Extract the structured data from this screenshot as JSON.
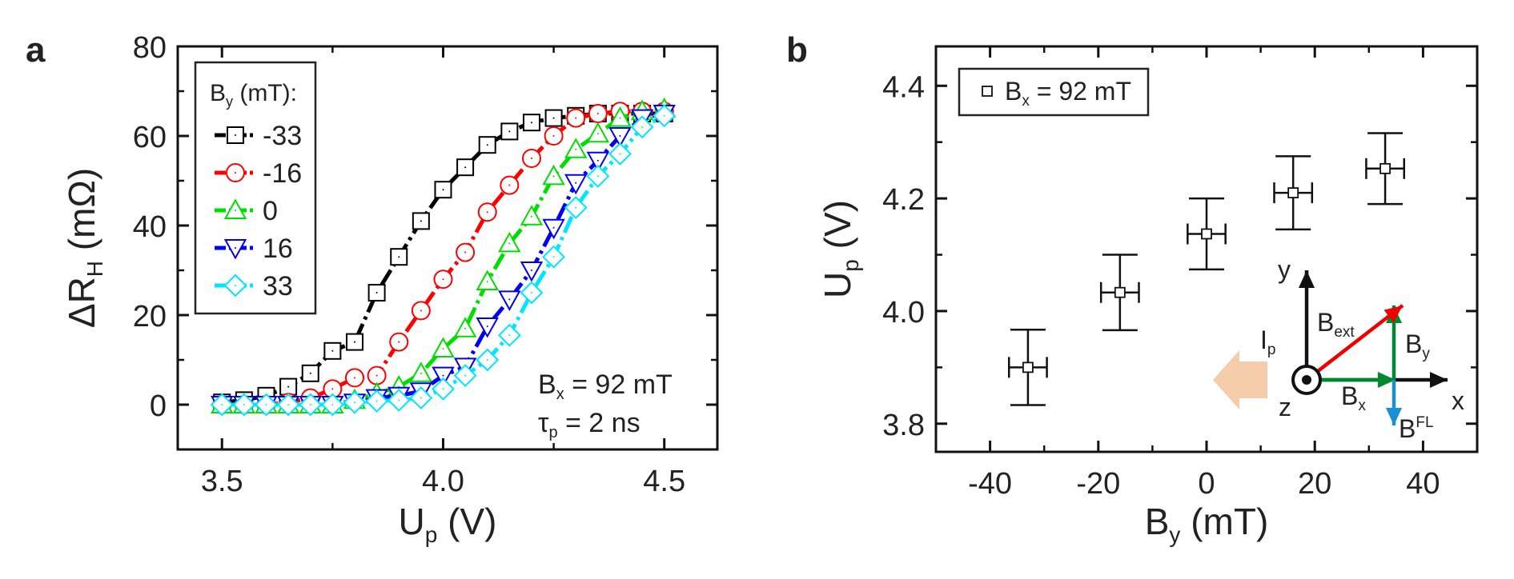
{
  "panel_labels": {
    "a": "a",
    "b": "b"
  },
  "chart_data": [
    {
      "type": "line",
      "panel": "a",
      "xlabel": {
        "main": "U",
        "sub": "p",
        "rest": " (V)"
      },
      "ylabel": {
        "main": "ΔR",
        "sub": "H",
        "rest": " (mΩ)"
      },
      "xlim": [
        3.4,
        4.62
      ],
      "ylim": [
        -10,
        80
      ],
      "xticks": [
        3.5,
        4.0,
        4.5
      ],
      "xtick_labels": [
        "3.5",
        "4.0",
        "4.5"
      ],
      "yticks": [
        0,
        20,
        40,
        60,
        80
      ],
      "ytick_labels": [
        "0",
        "20",
        "40",
        "60",
        "80"
      ],
      "legend_title": {
        "main": "B",
        "sub": "y",
        "rest": " (mT):"
      },
      "legend_position": "top-left",
      "annotation": {
        "line1": {
          "main": "B",
          "sub": "x",
          "rest": " = 92 mT"
        },
        "line2": {
          "main": "τ",
          "sub": "p",
          "rest": " = 2 ns"
        }
      },
      "x": [
        3.5,
        3.55,
        3.6,
        3.65,
        3.7,
        3.75,
        3.8,
        3.85,
        3.9,
        3.95,
        4.0,
        4.05,
        4.1,
        4.15,
        4.2,
        4.25,
        4.3,
        4.35,
        4.4,
        4.45,
        4.5
      ],
      "series": [
        {
          "name": "-33",
          "color": "#000000",
          "marker": "square",
          "values": [
            0.5,
            1,
            2,
            4,
            7,
            12,
            14,
            25,
            33,
            41,
            48,
            53,
            58,
            61,
            63,
            64,
            64.5,
            65,
            65,
            65,
            65
          ]
        },
        {
          "name": "-16",
          "color": "#ff0000",
          "marker": "circle",
          "values": [
            0,
            0,
            0,
            0.5,
            1.5,
            3.5,
            6,
            6.5,
            14,
            21,
            28,
            34,
            43,
            49,
            55,
            60,
            64,
            65,
            65.5,
            65.5,
            65.5
          ]
        },
        {
          "name": "0",
          "color": "#00dd00",
          "marker": "triangle-up",
          "values": [
            0,
            0,
            0,
            0,
            0,
            0,
            1,
            2.5,
            4,
            7,
            12.5,
            17,
            27.5,
            36,
            42,
            51,
            57,
            60.5,
            64,
            65.5,
            66
          ]
        },
        {
          "name": "16",
          "color": "#0000ee",
          "marker": "triangle-down",
          "values": [
            0,
            0,
            0,
            0,
            0,
            0,
            0.5,
            1.5,
            2,
            3,
            6.5,
            8.5,
            17.5,
            23.5,
            30,
            39.5,
            49.5,
            54.5,
            60,
            64,
            65
          ]
        },
        {
          "name": "33",
          "color": "#00e6ff",
          "marker": "diamond",
          "values": [
            0,
            0,
            0,
            0,
            0,
            0,
            0.5,
            0.8,
            1,
            1.5,
            3.5,
            6.5,
            10,
            15.5,
            25,
            33,
            44,
            51,
            56,
            62,
            64.5
          ]
        }
      ]
    },
    {
      "type": "scatter",
      "panel": "b",
      "xlabel": {
        "main": "B",
        "sub": "y",
        "rest": " (mT)"
      },
      "ylabel": {
        "main": "U",
        "sub": "p",
        "rest": " (V)"
      },
      "xlim": [
        -50,
        50
      ],
      "ylim": [
        3.75,
        4.47
      ],
      "xticks": [
        -40,
        -20,
        0,
        20,
        40
      ],
      "xtick_labels": [
        "-40",
        "-20",
        "0",
        "20",
        "40"
      ],
      "yticks": [
        3.8,
        4.0,
        4.2,
        4.4
      ],
      "ytick_labels": [
        "3.8",
        "4.0",
        "4.2",
        "4.4"
      ],
      "legend": {
        "main": "B",
        "sub": "x",
        "rest": " = 92 mT"
      },
      "legend_position": "top-left",
      "points": [
        {
          "x": -33,
          "y": 3.9,
          "xerr": 3.5,
          "yerr": 0.067
        },
        {
          "x": -16,
          "y": 4.033,
          "xerr": 3.5,
          "yerr": 0.067
        },
        {
          "x": 0,
          "y": 4.137,
          "xerr": 3.5,
          "yerr": 0.063
        },
        {
          "x": 16,
          "y": 4.21,
          "xerr": 3.5,
          "yerr": 0.065
        },
        {
          "x": 33,
          "y": 4.253,
          "xerr": 3.5,
          "yerr": 0.063
        }
      ],
      "inset_diagram": {
        "current_label": {
          "main": "I",
          "sub": "p"
        },
        "axis_x": "x",
        "axis_y": "y",
        "axis_z": "z",
        "b_ext": {
          "main": "B",
          "sub": "ext"
        },
        "b_y": {
          "main": "B",
          "sub": "y"
        },
        "b_x": {
          "main": "B",
          "sub": "x"
        },
        "b_fl": {
          "main": "B",
          "sup": "FL"
        },
        "colors": {
          "ext": "#ee0000",
          "xy": "#008a2e",
          "fl": "#1a8fd6",
          "current": "#f4c49c",
          "current_label": "#e8a070"
        }
      }
    }
  ]
}
